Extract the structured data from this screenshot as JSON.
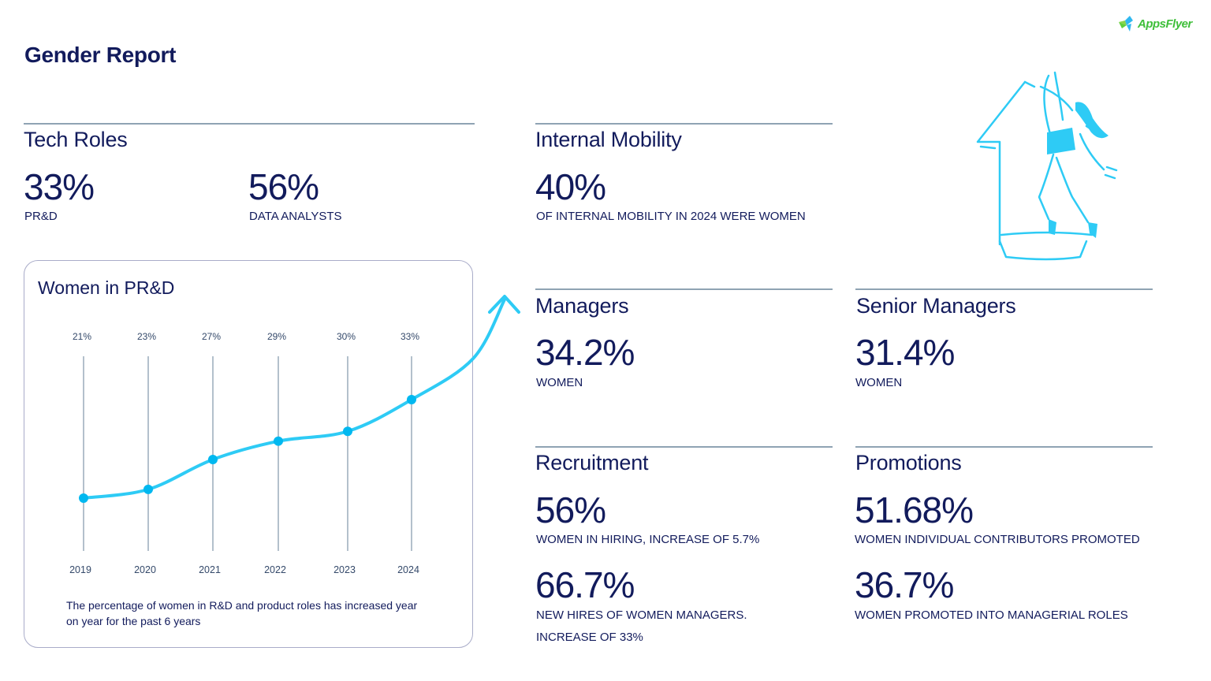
{
  "header": {
    "title": "Gender Report",
    "logo_text": "AppsFlyer",
    "logo_icon": "appsflyer-logo-icon"
  },
  "colors": {
    "navy": "#121b5c",
    "accent_cyan": "#2ecbf5",
    "dot_cyan": "#00b8f0",
    "rule_gray": "#8fa3b3",
    "logo_green": "#3fbf3a"
  },
  "tech_roles": {
    "title": "Tech Roles",
    "stats": [
      {
        "value": "33%",
        "label": "PR&D"
      },
      {
        "value": "56%",
        "label": "DATA ANALYSTS"
      }
    ]
  },
  "women_in_prd": {
    "title": "Women in PR&D",
    "description": "The percentage of women in R&D and product roles has increased year on year for the past 6 years"
  },
  "chart_data": {
    "type": "line",
    "title": "Women in PR&D",
    "x": [
      "2019",
      "2020",
      "2021",
      "2022",
      "2023",
      "2024"
    ],
    "series": [
      {
        "name": "Women in PR&D (%)",
        "values": [
          21,
          23,
          27,
          29,
          30,
          33
        ]
      }
    ],
    "data_labels": [
      "21%",
      "23%",
      "27%",
      "29%",
      "30%",
      "33%"
    ],
    "xlabel": "",
    "ylabel": "",
    "grid": "vertical lines per year",
    "legend": "none",
    "annotation": "upward arrow continuing the trend line"
  },
  "internal_mobility": {
    "title": "Internal Mobility",
    "value": "40%",
    "label": "OF INTERNAL MOBILITY IN 2024 WERE WOMEN"
  },
  "managers": {
    "title": "Managers",
    "value": "34.2%",
    "label": "WOMEN"
  },
  "senior_managers": {
    "title": "Senior Managers",
    "value": "31.4%",
    "label": "WOMEN"
  },
  "recruitment": {
    "title": "Recruitment",
    "stats": [
      {
        "value": "56%",
        "label": "WOMEN IN HIRING, INCREASE OF 5.7%"
      },
      {
        "value": "66.7%",
        "label": "NEW HIRES OF WOMEN MANAGERS.",
        "label2": "INCREASE OF 33%"
      }
    ]
  },
  "promotions": {
    "title": "Promotions",
    "stats": [
      {
        "value": "51.68%",
        "label": "WOMEN INDIVIDUAL CONTRIBUTORS PROMOTED"
      },
      {
        "value": "36.7%",
        "label": "WOMEN PROMOTED INTO MANAGERIAL ROLES"
      }
    ]
  },
  "illustration": {
    "icon": "woman-climbing-arrow-illustration"
  }
}
